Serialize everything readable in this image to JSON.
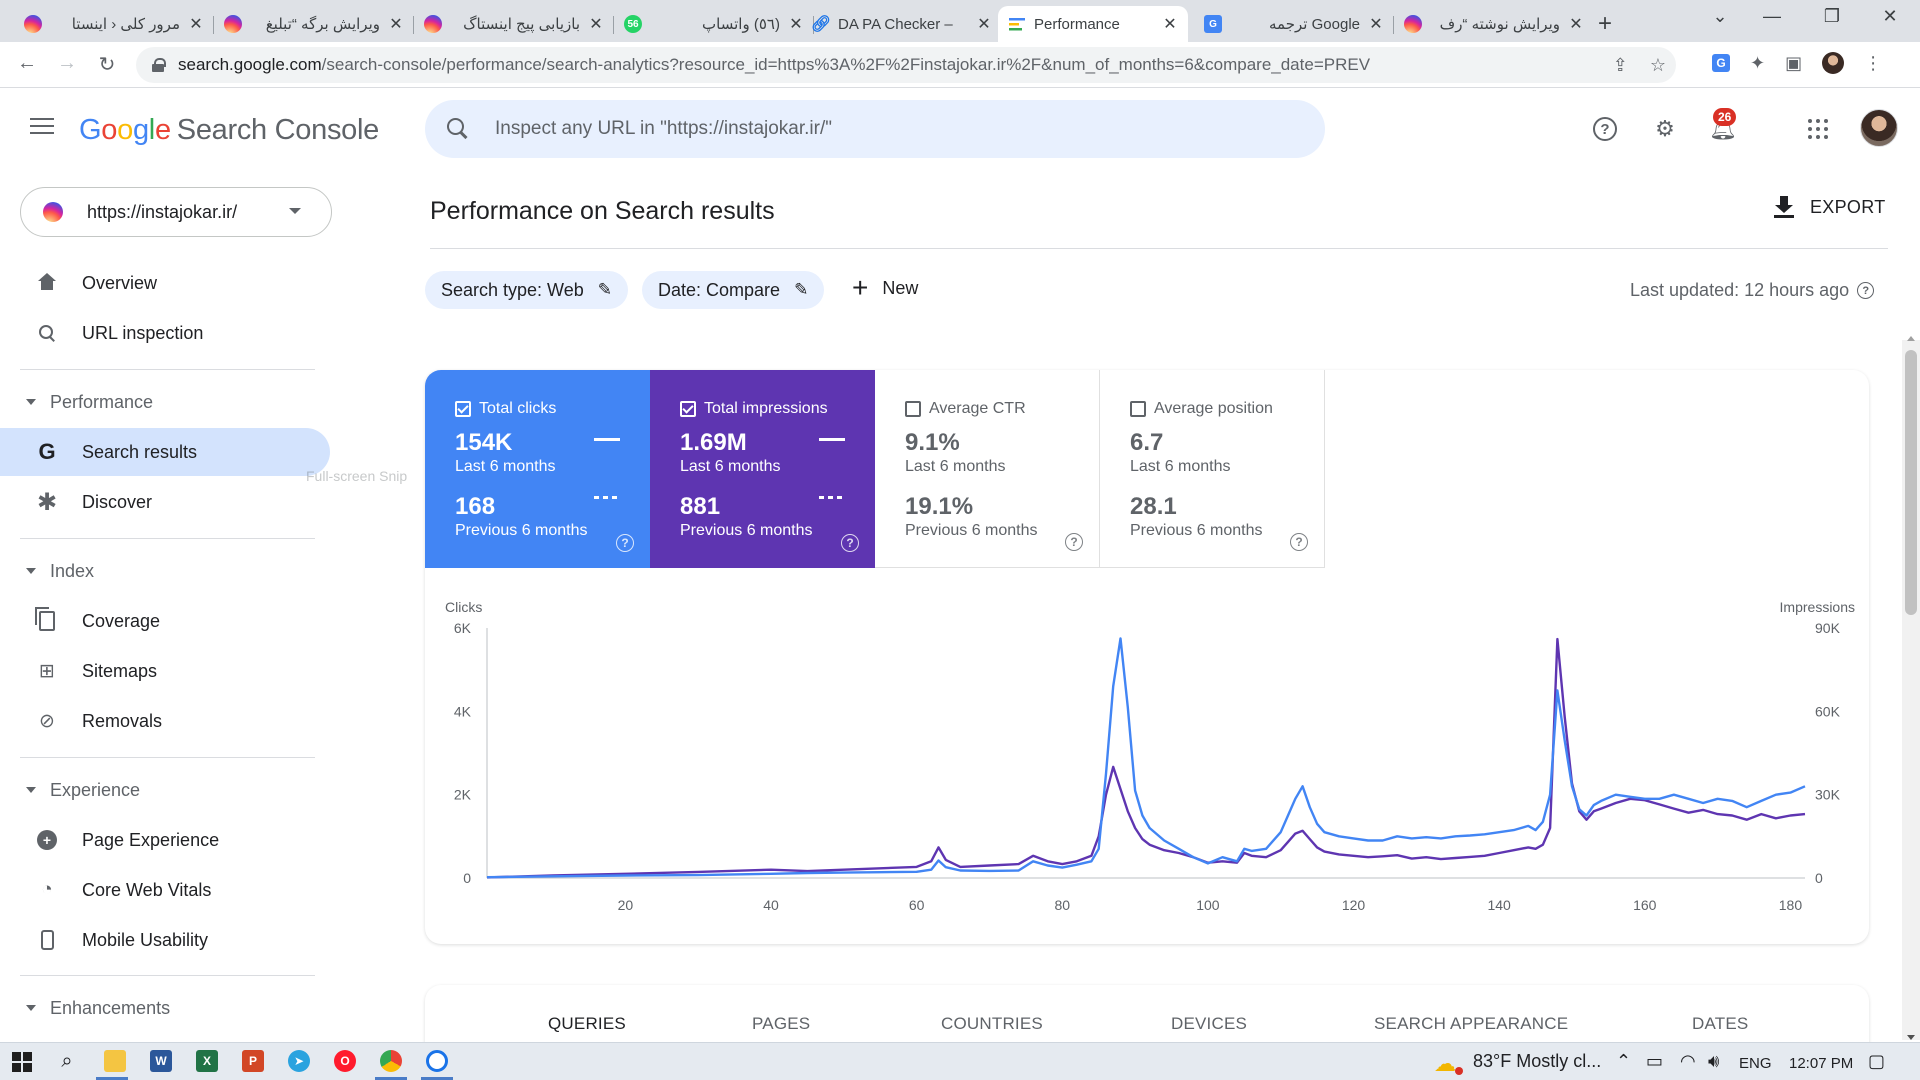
{
  "browser": {
    "tabs": [
      {
        "title": "مرور کلی ‹ اینستا",
        "icon": "instagram-icon",
        "active": false
      },
      {
        "title": "ویرایش برگه “تبلیغ",
        "icon": "instagram-icon",
        "active": false
      },
      {
        "title": "بازیابی پیج اینستاگ",
        "icon": "instagram-icon",
        "active": false
      },
      {
        "title": "(٥٦) واتساپ",
        "icon": "whatsapp-icon",
        "badge": "56",
        "active": false
      },
      {
        "title": "DA PA Checker –",
        "icon": "link-icon",
        "active": false
      },
      {
        "title": "Performance",
        "icon": "search-console-icon",
        "active": true
      },
      {
        "title": "Google ترجمه",
        "icon": "google-translate-icon",
        "active": false
      },
      {
        "title": "ویرایش نوشته “رف",
        "icon": "instagram-icon",
        "active": false
      }
    ],
    "url_host": "search.google.com",
    "url_rest": "/search-console/performance/search-analytics?resource_id=https%3A%2F%2Finstajokar.ir%2F&num_of_months=6&compare_date=PREV"
  },
  "header": {
    "logo_g": "G",
    "logo_o1": "o",
    "logo_o2": "o",
    "logo_g2": "g",
    "logo_l": "l",
    "logo_e": "e",
    "product": "Search Console",
    "search_placeholder": "Inspect any URL in \"https://instajokar.ir/\"",
    "notification_count": "26"
  },
  "property": {
    "label": "https://instajokar.ir/"
  },
  "sidebar": {
    "overview": "Overview",
    "url_inspection": "URL inspection",
    "performance_section": "Performance",
    "search_results": "Search results",
    "discover": "Discover",
    "index_section": "Index",
    "coverage": "Coverage",
    "sitemaps": "Sitemaps",
    "removals": "Removals",
    "experience_section": "Experience",
    "page_experience": "Page Experience",
    "core_web_vitals": "Core Web Vitals",
    "mobile_usability": "Mobile Usability",
    "enhancements_section": "Enhancements",
    "snip_overlay": "Full-screen Snip"
  },
  "main": {
    "title": "Performance on Search results",
    "export_label": "EXPORT",
    "filter_search_type": "Search type: Web",
    "filter_date": "Date: Compare",
    "new_label": "New",
    "last_updated": "Last updated: 12 hours ago"
  },
  "metrics": {
    "clicks": {
      "label": "Total clicks",
      "current": "154K",
      "current_period": "Last 6 months",
      "previous": "168",
      "previous_period": "Previous 6 months",
      "checked": true
    },
    "impressions": {
      "label": "Total impressions",
      "current": "1.69M",
      "current_period": "Last 6 months",
      "previous": "881",
      "previous_period": "Previous 6 months",
      "checked": true
    },
    "ctr": {
      "label": "Average CTR",
      "current": "9.1%",
      "current_period": "Last 6 months",
      "previous": "19.1%",
      "previous_period": "Previous 6 months",
      "checked": false
    },
    "position": {
      "label": "Average position",
      "current": "6.7",
      "current_period": "Last 6 months",
      "previous": "28.1",
      "previous_period": "Previous 6 months",
      "checked": false
    }
  },
  "colors": {
    "clicks": "#4285f4",
    "impressions": "#5e35b1",
    "accent": "#1a73e8"
  },
  "chart_data": {
    "type": "line",
    "xlabel": "",
    "ylabel_left": "Clicks",
    "ylabel_right": "Impressions",
    "x_ticks": [
      20,
      40,
      60,
      80,
      100,
      120,
      140,
      160,
      180
    ],
    "y_left_ticks": [
      "0",
      "2K",
      "4K",
      "6K"
    ],
    "y_right_ticks": [
      "0",
      "30K",
      "60K",
      "90K"
    ],
    "xlim": [
      1,
      182
    ],
    "ylim_left": [
      0,
      6000
    ],
    "ylim_right": [
      0,
      90000
    ],
    "grid": false,
    "series": [
      {
        "name": "Clicks",
        "axis": "left",
        "color": "#4285f4",
        "x": [
          1,
          10,
          20,
          30,
          40,
          45,
          50,
          55,
          60,
          62,
          63,
          64,
          66,
          70,
          74,
          76,
          78,
          80,
          82,
          84,
          85,
          86,
          87,
          88,
          89,
          90,
          91,
          92,
          94,
          96,
          98,
          100,
          102,
          104,
          105,
          106,
          108,
          110,
          111,
          112,
          113,
          114,
          115,
          116,
          118,
          120,
          122,
          124,
          126,
          128,
          130,
          132,
          134,
          136,
          138,
          140,
          142,
          144,
          145,
          146,
          147,
          148,
          149,
          150,
          151,
          152,
          153,
          154,
          156,
          158,
          160,
          162,
          164,
          166,
          168,
          170,
          172,
          174,
          176,
          178,
          180,
          182
        ],
        "y": [
          20,
          40,
          60,
          70,
          100,
          120,
          130,
          140,
          150,
          200,
          420,
          260,
          180,
          170,
          180,
          400,
          300,
          250,
          320,
          400,
          700,
          2500,
          4600,
          5750,
          4100,
          2100,
          1500,
          1200,
          900,
          700,
          500,
          350,
          500,
          400,
          700,
          650,
          700,
          1100,
          1500,
          1900,
          2200,
          1700,
          1300,
          1100,
          1000,
          950,
          900,
          900,
          1000,
          950,
          980,
          950,
          1000,
          1020,
          1050,
          1100,
          1150,
          1250,
          1150,
          1350,
          2000,
          4500,
          3300,
          2200,
          1650,
          1500,
          1750,
          1850,
          2000,
          1950,
          1900,
          1900,
          2000,
          1900,
          1800,
          1900,
          1850,
          1700,
          1850,
          2000,
          2050,
          2200
        ]
      },
      {
        "name": "Impressions",
        "axis": "right",
        "color": "#5e35b1",
        "x": [
          1,
          10,
          20,
          30,
          40,
          45,
          50,
          55,
          60,
          62,
          63,
          64,
          66,
          70,
          74,
          76,
          78,
          80,
          82,
          84,
          85,
          86,
          87,
          88,
          89,
          90,
          91,
          92,
          94,
          96,
          98,
          100,
          102,
          104,
          105,
          106,
          108,
          110,
          111,
          112,
          113,
          114,
          115,
          116,
          118,
          120,
          122,
          124,
          126,
          128,
          130,
          132,
          134,
          136,
          138,
          140,
          142,
          144,
          145,
          146,
          147,
          148,
          149,
          150,
          151,
          152,
          153,
          154,
          156,
          158,
          160,
          162,
          164,
          166,
          168,
          170,
          172,
          174,
          176,
          178,
          180,
          182
        ],
        "y": [
          200,
          900,
          1500,
          2200,
          3000,
          2500,
          3000,
          3500,
          4000,
          6000,
          11000,
          6500,
          4000,
          4500,
          5000,
          8000,
          6000,
          5000,
          6000,
          8000,
          15000,
          30000,
          40000,
          32000,
          24000,
          18000,
          14000,
          12000,
          10000,
          9000,
          7500,
          5500,
          6000,
          5500,
          9000,
          8000,
          7500,
          10000,
          13000,
          16000,
          17000,
          14000,
          11000,
          9500,
          8500,
          8000,
          7500,
          7800,
          8200,
          7000,
          7500,
          6800,
          7200,
          7600,
          8000,
          9000,
          10000,
          11000,
          10500,
          12000,
          18000,
          86000,
          58000,
          34000,
          24000,
          21000,
          24000,
          25000,
          27000,
          28500,
          28000,
          26500,
          25000,
          23500,
          24500,
          23000,
          22500,
          21000,
          23000,
          21500,
          22500,
          23000
        ]
      }
    ]
  },
  "report_tabs": [
    "QUERIES",
    "PAGES",
    "COUNTRIES",
    "DEVICES",
    "SEARCH APPEARANCE",
    "DATES"
  ],
  "taskbar": {
    "weather": "83°F  Mostly cl...",
    "lang": "ENG",
    "time": "12:07 PM"
  }
}
